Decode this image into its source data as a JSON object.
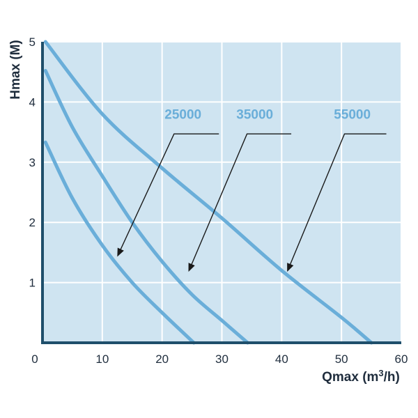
{
  "chart_data": {
    "type": "line",
    "title": "",
    "xlabel_prefix": "Qmax (m",
    "xlabel_sup": "3",
    "xlabel_suffix": "/h)",
    "ylabel": "Hmax (M)",
    "xlim": [
      0,
      60
    ],
    "ylim": [
      0,
      5
    ],
    "x_ticks": [
      0,
      10,
      20,
      30,
      40,
      50,
      60
    ],
    "y_ticks": [
      1,
      2,
      3,
      4,
      5
    ],
    "grid": true,
    "colors": {
      "plot_background": "#cfe4f1",
      "grid": "#ffffff",
      "axis": "#1f4f6b",
      "series": "#6aaed9",
      "label": "#6aaed9",
      "annotation": "#1a1a1a"
    },
    "series": [
      {
        "name": "25000",
        "points": [
          [
            0.5,
            3.33
          ],
          [
            5,
            2.4
          ],
          [
            10,
            1.62
          ],
          [
            15,
            1.0
          ],
          [
            20,
            0.5
          ],
          [
            25.3,
            0.0
          ]
        ],
        "label_anchor": [
          23.5,
          3.72
        ],
        "arrow_tail": [
          29.5,
          3.47
        ],
        "arrow_elbow": [
          22,
          3.47
        ],
        "arrow_tip": [
          12.6,
          1.45
        ]
      },
      {
        "name": "35000",
        "points": [
          [
            0.5,
            4.52
          ],
          [
            5,
            3.58
          ],
          [
            10,
            2.77
          ],
          [
            15,
            2.0
          ],
          [
            20,
            1.35
          ],
          [
            25,
            0.8
          ],
          [
            30,
            0.37
          ],
          [
            34.3,
            0.0
          ]
        ],
        "label_anchor": [
          35.5,
          3.72
        ],
        "arrow_tail": [
          41.6,
          3.47
        ],
        "arrow_elbow": [
          34.2,
          3.47
        ],
        "arrow_tip": [
          24.5,
          1.2
        ]
      },
      {
        "name": "55000",
        "points": [
          [
            0.5,
            5.0
          ],
          [
            10,
            3.8
          ],
          [
            20,
            2.9
          ],
          [
            30,
            2.07
          ],
          [
            40,
            1.2
          ],
          [
            50,
            0.42
          ],
          [
            55,
            0.0
          ]
        ],
        "label_anchor": [
          51.8,
          3.72
        ],
        "arrow_tail": [
          57.5,
          3.47
        ],
        "arrow_elbow": [
          50.5,
          3.47
        ],
        "arrow_tip": [
          41.0,
          1.2
        ]
      }
    ]
  }
}
